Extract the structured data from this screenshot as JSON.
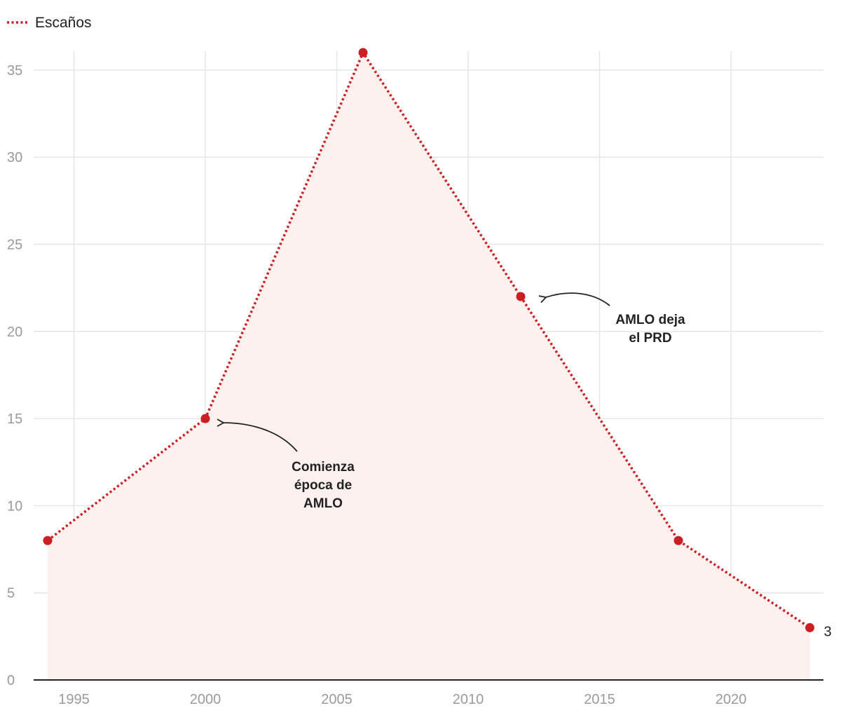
{
  "chart_data": {
    "type": "area",
    "legend": {
      "label": "Escaños",
      "placement": "top-left"
    },
    "x": [
      1994,
      2000,
      2006,
      2012,
      2018,
      2023
    ],
    "series": [
      {
        "name": "Escaños",
        "values": [
          8,
          15,
          36,
          22,
          8,
          3
        ]
      }
    ],
    "xlim": [
      1994,
      2023
    ],
    "ylim": [
      0,
      36
    ],
    "x_ticks": [
      1995,
      2000,
      2005,
      2010,
      2015,
      2020
    ],
    "y_ticks": [
      0,
      5,
      10,
      15,
      20,
      25,
      30,
      35
    ],
    "x_tick_labels": [
      "1995",
      "2000",
      "2005",
      "2010",
      "2015",
      "2020"
    ],
    "y_tick_labels": [
      "0",
      "5",
      "10",
      "15",
      "20",
      "25",
      "30",
      "35"
    ],
    "last_value_label": "3",
    "grid": true,
    "annotations": [
      {
        "x": 2000,
        "y": 15,
        "lines": [
          "Comienza",
          "época de",
          "AMLO"
        ]
      },
      {
        "x": 2012,
        "y": 22,
        "lines": [
          "AMLO deja",
          "el PRD"
        ]
      }
    ],
    "colors": {
      "line": "#cc1f24",
      "area": "#fdf1ef",
      "grid": "#e6e6e6",
      "axis": "#222222"
    }
  }
}
